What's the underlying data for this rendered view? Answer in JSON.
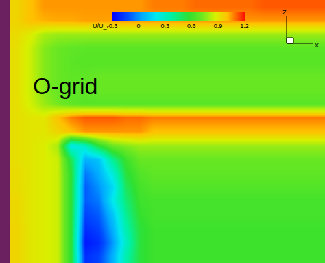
{
  "chart_data": {
    "type": "heatmap",
    "tick_labels": false,
    "annotations": [
      "O-grid"
    ],
    "axis_labels": {
      "z": "Z",
      "x": "X"
    },
    "colorbar": {
      "title": "U/U_:",
      "range": [
        -0.3,
        1.2
      ],
      "ticks": [
        -0.3,
        0,
        0.3,
        0.6,
        0.9,
        1.2
      ]
    },
    "z": [
      [
        0.95,
        1.0,
        1.05,
        1.05,
        1.05,
        1.05,
        1.05,
        1.05,
        1.05,
        1.05,
        1.08,
        1.08,
        1.08,
        1.1,
        1.1,
        1.1,
        1.1,
        1.1,
        1.12,
        1.12,
        1.12,
        1.12,
        1.12
      ],
      [
        0.95,
        1.0,
        1.02,
        1.03,
        1.03,
        1.04,
        1.04,
        1.04,
        1.05,
        1.05,
        1.05,
        1.05,
        1.05,
        1.05,
        1.05,
        1.05,
        1.05,
        1.05,
        1.05,
        1.05,
        1.05,
        1.05,
        1.05
      ],
      [
        0.93,
        0.88,
        0.8,
        0.78,
        0.78,
        0.78,
        0.78,
        0.78,
        0.78,
        0.78,
        0.78,
        0.78,
        0.78,
        0.78,
        0.78,
        0.78,
        0.78,
        0.78,
        0.78,
        0.78,
        0.78,
        0.78,
        0.78
      ],
      [
        0.92,
        0.85,
        0.75,
        0.7,
        0.68,
        0.67,
        0.67,
        0.67,
        0.67,
        0.67,
        0.67,
        0.67,
        0.67,
        0.67,
        0.67,
        0.67,
        0.67,
        0.67,
        0.67,
        0.67,
        0.67,
        0.67,
        0.67
      ],
      [
        0.92,
        0.85,
        0.75,
        0.7,
        0.67,
        0.66,
        0.66,
        0.66,
        0.66,
        0.66,
        0.66,
        0.66,
        0.66,
        0.66,
        0.66,
        0.66,
        0.66,
        0.66,
        0.66,
        0.66,
        0.66,
        0.66,
        0.66
      ],
      [
        0.92,
        0.85,
        0.75,
        0.7,
        0.68,
        0.68,
        0.7,
        0.7,
        0.7,
        0.7,
        0.7,
        0.7,
        0.7,
        0.7,
        0.7,
        0.7,
        0.7,
        0.7,
        0.7,
        0.7,
        0.7,
        0.7,
        0.7
      ],
      [
        0.92,
        0.85,
        0.75,
        0.7,
        0.68,
        0.68,
        0.7,
        0.7,
        0.7,
        0.7,
        0.7,
        0.7,
        0.7,
        0.7,
        0.7,
        0.7,
        0.7,
        0.7,
        0.7,
        0.7,
        0.7,
        0.7,
        0.7
      ],
      [
        0.92,
        0.86,
        0.78,
        0.72,
        0.68,
        0.66,
        0.66,
        0.66,
        0.66,
        0.66,
        0.66,
        0.66,
        0.66,
        0.66,
        0.66,
        0.66,
        0.66,
        0.66,
        0.66,
        0.66,
        0.66,
        0.66,
        0.66
      ],
      [
        0.92,
        0.9,
        0.9,
        1.0,
        1.08,
        1.12,
        1.12,
        1.12,
        1.1,
        1.1,
        1.08,
        1.08,
        1.08,
        1.08,
        1.08,
        1.08,
        1.08,
        1.08,
        1.08,
        1.08,
        1.08,
        1.08,
        1.08
      ],
      [
        0.92,
        0.9,
        0.9,
        0.95,
        1.0,
        1.05,
        1.05,
        1.05,
        1.05,
        1.05,
        1.0,
        1.0,
        1.0,
        1.0,
        1.0,
        1.0,
        1.0,
        1.0,
        1.0,
        1.0,
        1.0,
        1.0,
        1.0
      ],
      [
        0.92,
        0.9,
        0.88,
        0.8,
        0.2,
        0.3,
        0.55,
        0.7,
        0.75,
        0.78,
        0.78,
        0.78,
        0.78,
        0.78,
        0.78,
        0.78,
        0.78,
        0.78,
        0.78,
        0.78,
        0.78,
        0.78,
        0.78
      ],
      [
        0.92,
        0.9,
        0.88,
        0.85,
        0.5,
        0.05,
        0.1,
        0.4,
        0.6,
        0.7,
        0.7,
        0.7,
        0.7,
        0.7,
        0.7,
        0.7,
        0.7,
        0.7,
        0.7,
        0.7,
        0.7,
        0.7,
        0.7
      ],
      [
        0.93,
        0.9,
        0.88,
        0.85,
        0.55,
        -0.05,
        0.05,
        0.25,
        0.55,
        0.65,
        0.68,
        0.68,
        0.68,
        0.68,
        0.68,
        0.68,
        0.68,
        0.68,
        0.68,
        0.68,
        0.68,
        0.68,
        0.68
      ],
      [
        0.93,
        0.9,
        0.88,
        0.85,
        0.55,
        -0.1,
        0.0,
        0.15,
        0.5,
        0.62,
        0.65,
        0.65,
        0.65,
        0.65,
        0.65,
        0.65,
        0.65,
        0.65,
        0.65,
        0.65,
        0.65,
        0.65,
        0.65
      ],
      [
        0.94,
        0.9,
        0.88,
        0.85,
        0.55,
        -0.1,
        -0.05,
        0.2,
        0.45,
        0.6,
        0.62,
        0.62,
        0.62,
        0.62,
        0.62,
        0.62,
        0.62,
        0.62,
        0.62,
        0.62,
        0.62,
        0.62,
        0.62
      ],
      [
        0.94,
        0.9,
        0.88,
        0.85,
        0.55,
        -0.15,
        -0.1,
        0.1,
        0.4,
        0.58,
        0.62,
        0.62,
        0.62,
        0.62,
        0.62,
        0.62,
        0.62,
        0.62,
        0.62,
        0.62,
        0.62,
        0.62,
        0.62
      ],
      [
        0.95,
        0.9,
        0.88,
        0.85,
        0.55,
        -0.2,
        -0.15,
        0.05,
        0.35,
        0.55,
        0.6,
        0.6,
        0.6,
        0.6,
        0.6,
        0.6,
        0.6,
        0.6,
        0.6,
        0.6,
        0.6,
        0.6,
        0.6
      ],
      [
        0.95,
        0.9,
        0.88,
        0.85,
        0.55,
        -0.25,
        -0.2,
        0.0,
        0.3,
        0.55,
        0.6,
        0.6,
        0.6,
        0.6,
        0.6,
        0.6,
        0.6,
        0.6,
        0.6,
        0.6,
        0.6,
        0.6,
        0.6
      ],
      [
        0.95,
        0.9,
        0.88,
        0.85,
        0.55,
        -0.2,
        -0.15,
        0.05,
        0.35,
        0.55,
        0.6,
        0.6,
        0.6,
        0.6,
        0.6,
        0.6,
        0.6,
        0.6,
        0.6,
        0.6,
        0.6,
        0.6,
        0.6
      ]
    ]
  }
}
